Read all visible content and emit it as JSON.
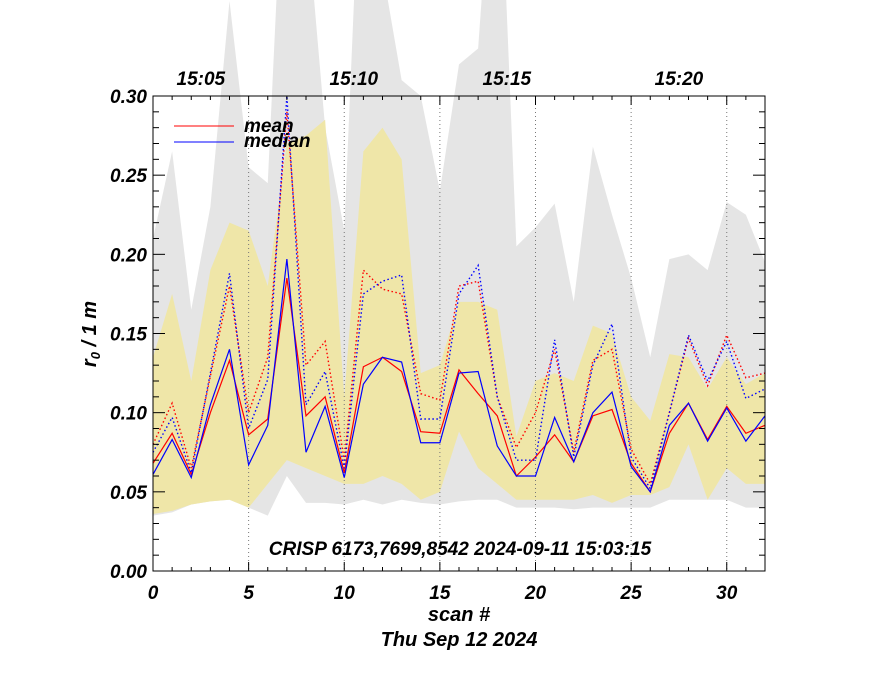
{
  "chart_data": {
    "type": "line",
    "title": "CRISP 6173,7699,8542 2024-09-11 15:03:15",
    "xlabel": "scan #",
    "ylabel_main": "r",
    "ylabel_sub": "0",
    "ylabel_rest": " / 1 m",
    "date_label": "Thu Sep 12 2024",
    "xlim": [
      0,
      32
    ],
    "ylim": [
      0,
      0.3
    ],
    "x_ticks": [
      0,
      5,
      10,
      15,
      20,
      25,
      30
    ],
    "x_tick_labels": [
      "0",
      "5",
      "10",
      "15",
      "20",
      "25",
      "30"
    ],
    "y_ticks": [
      0,
      0.05,
      0.1,
      0.15,
      0.2,
      0.25,
      0.3
    ],
    "y_tick_labels": [
      "0.00",
      "0.05",
      "0.10",
      "0.15",
      "0.20",
      "0.25",
      "0.30"
    ],
    "time_ticks": [
      {
        "scan": 2.5,
        "label": "15:05"
      },
      {
        "scan": 10.5,
        "label": "15:10"
      },
      {
        "scan": 18.5,
        "label": "15:15"
      },
      {
        "scan": 27.5,
        "label": "15:20"
      }
    ],
    "time_gridlines": [
      5,
      10,
      15,
      20,
      25,
      30
    ],
    "x": [
      0,
      1,
      2,
      3,
      4,
      5,
      6,
      7,
      8,
      9,
      10,
      11,
      12,
      13,
      14,
      15,
      16,
      17,
      18,
      19,
      20,
      21,
      22,
      23,
      24,
      25,
      26,
      27,
      28,
      29,
      30,
      31,
      32
    ],
    "gray_band": {
      "name": "max range",
      "lower": [
        0.035,
        0.037,
        0.042,
        0.044,
        0.045,
        0.04,
        0.035,
        0.06,
        0.043,
        0.043,
        0.042,
        0.045,
        0.042,
        0.045,
        0.043,
        0.042,
        0.044,
        0.045,
        0.045,
        0.04,
        0.04,
        0.04,
        0.039,
        0.04,
        0.04,
        0.04,
        0.04,
        0.045,
        0.045,
        0.045,
        0.045,
        0.04,
        0.04
      ],
      "upper": [
        0.21,
        0.265,
        0.165,
        0.23,
        0.36,
        0.255,
        0.245,
        0.5,
        0.42,
        0.28,
        0.215,
        0.5,
        0.38,
        0.31,
        0.3,
        0.24,
        0.32,
        0.33,
        0.5,
        0.205,
        0.217,
        0.232,
        0.17,
        0.268,
        0.225,
        0.185,
        0.135,
        0.197,
        0.2,
        0.19,
        0.233,
        0.225,
        0.195
      ]
    },
    "yellow_band": {
      "name": "spread",
      "lower": [
        0.036,
        0.038,
        0.042,
        0.044,
        0.045,
        0.04,
        0.055,
        0.07,
        0.065,
        0.06,
        0.055,
        0.055,
        0.06,
        0.055,
        0.045,
        0.05,
        0.088,
        0.065,
        0.055,
        0.045,
        0.045,
        0.045,
        0.045,
        0.048,
        0.043,
        0.048,
        0.048,
        0.053,
        0.08,
        0.045,
        0.065,
        0.055,
        0.055
      ],
      "upper": [
        0.135,
        0.175,
        0.12,
        0.19,
        0.22,
        0.215,
        0.18,
        0.27,
        0.275,
        0.285,
        0.11,
        0.265,
        0.28,
        0.26,
        0.125,
        0.13,
        0.17,
        0.17,
        0.165,
        0.085,
        0.12,
        0.125,
        0.12,
        0.155,
        0.15,
        0.11,
        0.095,
        0.137,
        0.135,
        0.115,
        0.135,
        0.118,
        0.125
      ]
    },
    "series": [
      {
        "name": "mean",
        "color": "#ff0000",
        "style": "solid",
        "values": [
          0.068,
          0.087,
          0.061,
          0.1,
          0.133,
          0.086,
          0.096,
          0.185,
          0.098,
          0.11,
          0.062,
          0.129,
          0.135,
          0.126,
          0.088,
          0.087,
          0.127,
          0.112,
          0.098,
          0.06,
          0.072,
          0.086,
          0.069,
          0.098,
          0.102,
          0.068,
          0.05,
          0.087,
          0.106,
          0.083,
          0.104,
          0.087,
          0.092
        ]
      },
      {
        "name": "median",
        "color": "#0000ff",
        "style": "solid",
        "values": [
          0.061,
          0.083,
          0.059,
          0.105,
          0.14,
          0.067,
          0.092,
          0.197,
          0.075,
          0.104,
          0.059,
          0.118,
          0.135,
          0.132,
          0.081,
          0.081,
          0.125,
          0.126,
          0.079,
          0.06,
          0.06,
          0.097,
          0.069,
          0.1,
          0.113,
          0.066,
          0.05,
          0.092,
          0.106,
          0.082,
          0.103,
          0.082,
          0.098
        ]
      },
      {
        "name": "mean high",
        "color": "#ff0000",
        "style": "dotted",
        "legend": false,
        "values": [
          0.08,
          0.106,
          0.065,
          0.123,
          0.18,
          0.1,
          0.135,
          0.29,
          0.13,
          0.145,
          0.07,
          0.19,
          0.178,
          0.175,
          0.112,
          0.108,
          0.18,
          0.183,
          0.11,
          0.078,
          0.1,
          0.14,
          0.075,
          0.133,
          0.14,
          0.077,
          0.055,
          0.1,
          0.147,
          0.117,
          0.149,
          0.122,
          0.125
        ]
      },
      {
        "name": "median high",
        "color": "#0000ff",
        "style": "dotted",
        "legend": false,
        "values": [
          0.075,
          0.097,
          0.062,
          0.125,
          0.188,
          0.09,
          0.121,
          0.3,
          0.105,
          0.126,
          0.065,
          0.175,
          0.183,
          0.187,
          0.096,
          0.096,
          0.175,
          0.193,
          0.11,
          0.07,
          0.07,
          0.146,
          0.072,
          0.13,
          0.156,
          0.072,
          0.052,
          0.1,
          0.149,
          0.12,
          0.145,
          0.109,
          0.115
        ]
      }
    ],
    "legend_position": "top-left",
    "legend": [
      "mean",
      "median"
    ]
  }
}
